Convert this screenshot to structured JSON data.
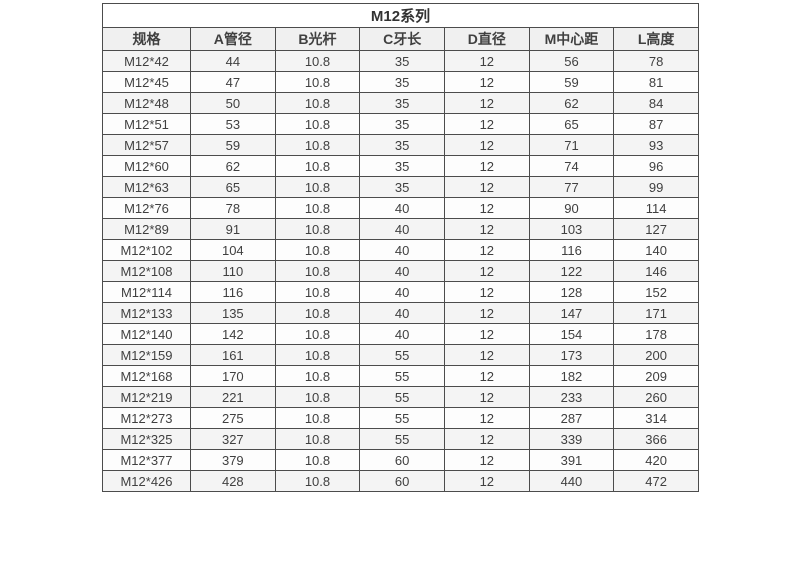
{
  "table": {
    "title": "M12系列",
    "columns": [
      "规格",
      "A管径",
      "B光杆",
      "C牙长",
      "D直径",
      "M中心距",
      "L高度"
    ],
    "rows": [
      [
        "M12*42",
        "44",
        "10.8",
        "35",
        "12",
        "56",
        "78"
      ],
      [
        "M12*45",
        "47",
        "10.8",
        "35",
        "12",
        "59",
        "81"
      ],
      [
        "M12*48",
        "50",
        "10.8",
        "35",
        "12",
        "62",
        "84"
      ],
      [
        "M12*51",
        "53",
        "10.8",
        "35",
        "12",
        "65",
        "87"
      ],
      [
        "M12*57",
        "59",
        "10.8",
        "35",
        "12",
        "71",
        "93"
      ],
      [
        "M12*60",
        "62",
        "10.8",
        "35",
        "12",
        "74",
        "96"
      ],
      [
        "M12*63",
        "65",
        "10.8",
        "35",
        "12",
        "77",
        "99"
      ],
      [
        "M12*76",
        "78",
        "10.8",
        "40",
        "12",
        "90",
        "114"
      ],
      [
        "M12*89",
        "91",
        "10.8",
        "40",
        "12",
        "103",
        "127"
      ],
      [
        "M12*102",
        "104",
        "10.8",
        "40",
        "12",
        "116",
        "140"
      ],
      [
        "M12*108",
        "110",
        "10.8",
        "40",
        "12",
        "122",
        "146"
      ],
      [
        "M12*114",
        "116",
        "10.8",
        "40",
        "12",
        "128",
        "152"
      ],
      [
        "M12*133",
        "135",
        "10.8",
        "40",
        "12",
        "147",
        "171"
      ],
      [
        "M12*140",
        "142",
        "10.8",
        "40",
        "12",
        "154",
        "178"
      ],
      [
        "M12*159",
        "161",
        "10.8",
        "55",
        "12",
        "173",
        "200"
      ],
      [
        "M12*168",
        "170",
        "10.8",
        "55",
        "12",
        "182",
        "209"
      ],
      [
        "M12*219",
        "221",
        "10.8",
        "55",
        "12",
        "233",
        "260"
      ],
      [
        "M12*273",
        "275",
        "10.8",
        "55",
        "12",
        "287",
        "314"
      ],
      [
        "M12*325",
        "327",
        "10.8",
        "55",
        "12",
        "339",
        "366"
      ],
      [
        "M12*377",
        "379",
        "10.8",
        "60",
        "12",
        "391",
        "420"
      ],
      [
        "M12*426",
        "428",
        "10.8",
        "60",
        "12",
        "440",
        "472"
      ]
    ],
    "colors": {
      "border": "#4c4c4c",
      "text": "#404040",
      "title_bg": "#ffffff",
      "header_bg": "#f0f0f0",
      "row_odd_bg": "#f4f4f4",
      "row_even_bg": "#fdfdfd"
    }
  }
}
